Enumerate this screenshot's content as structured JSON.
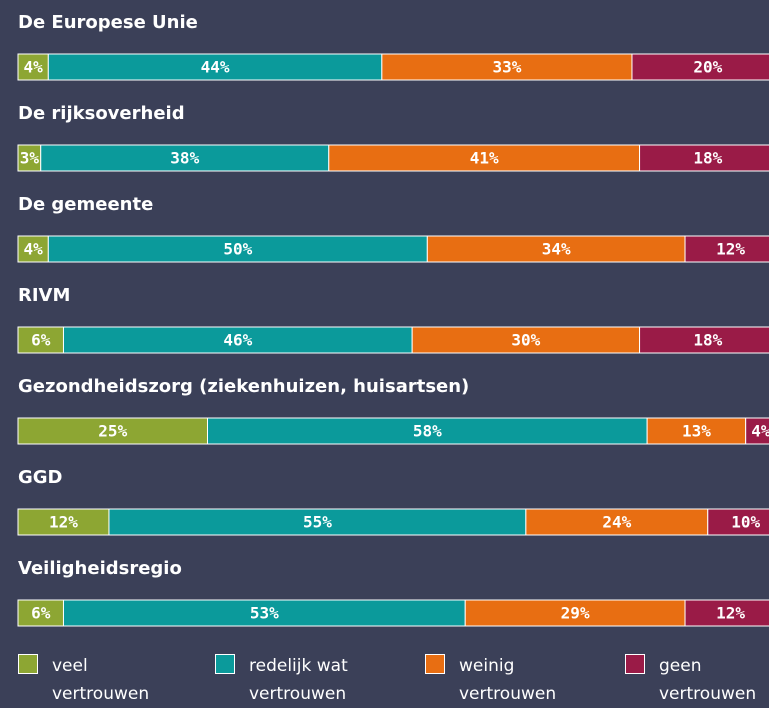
{
  "chart_data": {
    "type": "stacked-bar",
    "categories": [
      "De Europese Unie",
      "De rijksoverheid",
      "De gemeente",
      "RIVM",
      "Gezondheidszorg (ziekenhuizen, huisartsen)",
      "GGD",
      "Veiligheidsregio"
    ],
    "xlim": [
      0,
      100
    ],
    "series": [
      {
        "name": "veel vertrouwen",
        "color": "#8da633",
        "values": [
          4,
          3,
          4,
          6,
          25,
          12,
          6
        ],
        "value_labels": [
          "4%",
          "3%",
          "4%",
          "6%",
          "25%",
          "12%",
          "6%"
        ]
      },
      {
        "name": "redelijk wat vertrouwen",
        "color": "#0b9a9b",
        "values": [
          44,
          38,
          50,
          46,
          58,
          55,
          53
        ],
        "value_labels": [
          "44%",
          "38%",
          "50%",
          "46%",
          "58%",
          "55%",
          "53%"
        ]
      },
      {
        "name": "weinig vertrouwen",
        "color": "#e86e12",
        "values": [
          33,
          41,
          34,
          30,
          13,
          24,
          29
        ],
        "value_labels": [
          "33%",
          "41%",
          "34%",
          "30%",
          "13%",
          "24%",
          "29%"
        ]
      },
      {
        "name": "geen vertrouwen",
        "color": "#9a1b47",
        "values": [
          20,
          18,
          12,
          18,
          4,
          10,
          12
        ],
        "value_labels": [
          "20%",
          "18%",
          "12%",
          "18%",
          "4%",
          "10%",
          "12%"
        ]
      }
    ]
  }
}
